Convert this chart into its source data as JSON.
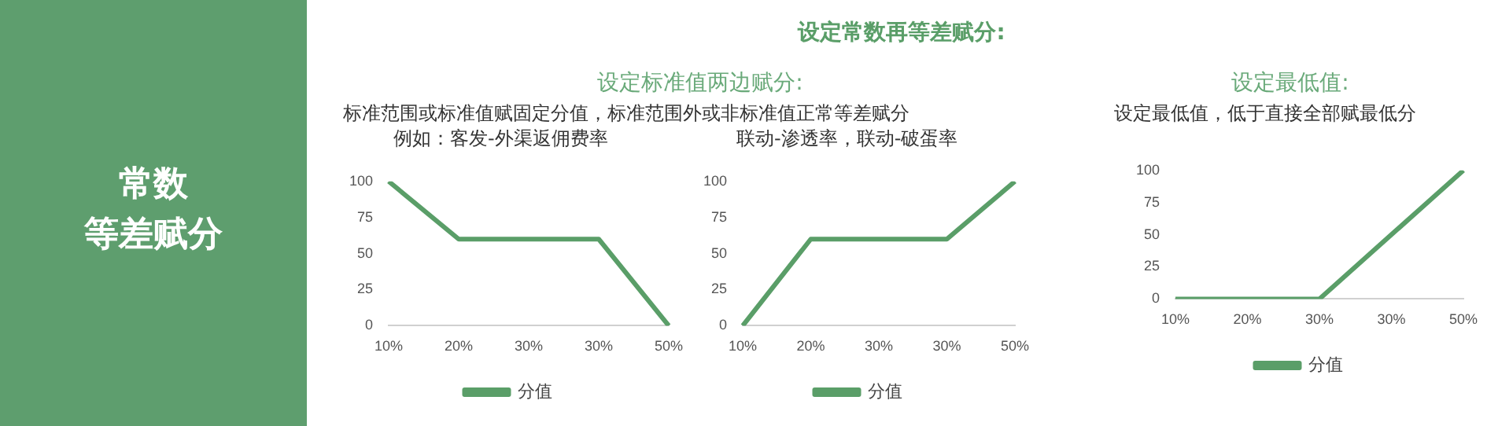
{
  "chart_data": [
    {
      "type": "other",
      "title": "常数",
      "subtitle": "等差赋分",
      "annotations": [
        "设定常数再等差赋分:"
      ]
    },
    {
      "type": "line",
      "title": "设定标准值两边赋分:",
      "subtitle": "标准范围或标准值赋固定分值，标准范围外或非标准值正常等差赋分",
      "annotations": [
        "例如：客发-外渠返佣费率"
      ],
      "categories": [
        "10%",
        "20%",
        "30%",
        "30%",
        "50%"
      ],
      "series": [
        {
          "name": "分值",
          "color": "#5a9e68",
          "values": [
            100,
            60,
            60,
            60,
            0
          ]
        }
      ],
      "ylim": [
        0,
        100
      ],
      "yticks": [
        0,
        25,
        50,
        75,
        100
      ],
      "grid": false,
      "legend": "bottom",
      "marker": "none",
      "line_style": "solid"
    },
    {
      "type": "line",
      "annotations": [
        "联动-渗透率，联动-破蛋率"
      ],
      "categories": [
        "10%",
        "20%",
        "30%",
        "30%",
        "50%"
      ],
      "series": [
        {
          "name": "分值",
          "color": "#5a9e68",
          "values": [
            0,
            60,
            60,
            60,
            100
          ]
        }
      ],
      "ylim": [
        0,
        100
      ],
      "yticks": [
        0,
        25,
        50,
        75,
        100
      ],
      "grid": false,
      "legend": "bottom",
      "marker": "none",
      "line_style": "solid"
    },
    {
      "type": "line",
      "title": "设定最低值:",
      "subtitle": "设定最低值，低于直接全部赋最低分",
      "categories": [
        "10%",
        "20%",
        "30%",
        "30%",
        "50%"
      ],
      "series": [
        {
          "name": "分值",
          "color": "#5a9e68",
          "values": [
            0,
            0,
            0,
            50,
            100
          ]
        }
      ],
      "ylim": [
        0,
        100
      ],
      "yticks": [
        0,
        25,
        50,
        75,
        100
      ],
      "grid": false,
      "legend": "bottom",
      "marker": "none",
      "line_style": "solid"
    }
  ]
}
